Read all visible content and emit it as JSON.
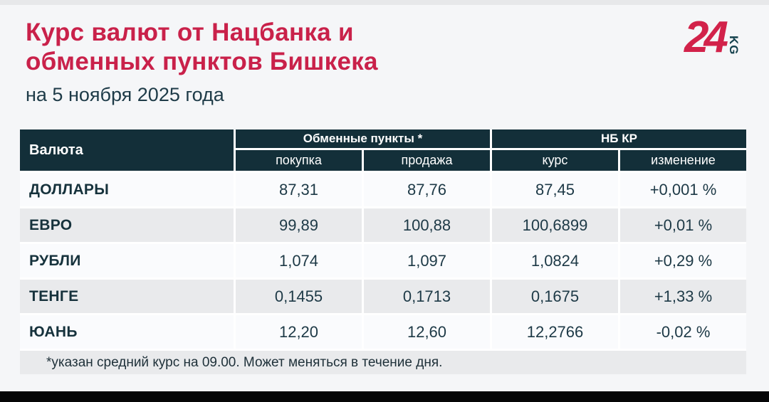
{
  "header": {
    "title_line1": "Курс валют от Нацбанка и",
    "title_line2": "обменных пунктов Бишкека",
    "date_subtitle": "на 5 ноября 2025 года",
    "logo_number": "24",
    "logo_suffix": "KG"
  },
  "colors": {
    "accent_red": "#c9214a",
    "header_teal": "#132f39",
    "row_even": "#e9eaec",
    "row_odd": "#fafbfd",
    "page_bg": "#f5f6f8"
  },
  "table": {
    "col_currency": "Валюта",
    "group_exchange": "Обменные пункты *",
    "group_nbkr": "НБ КР",
    "sub_buy": "покупка",
    "sub_sell": "продажа",
    "sub_rate": "курс",
    "sub_change": "изменение",
    "rows": [
      {
        "currency": "ДОЛЛАРЫ",
        "buy": "87,31",
        "sell": "87,76",
        "rate": "87,45",
        "change": "+0,001 %"
      },
      {
        "currency": "ЕВРО",
        "buy": "99,89",
        "sell": "100,88",
        "rate": "100,6899",
        "change": "+0,01 %"
      },
      {
        "currency": "РУБЛИ",
        "buy": "1,074",
        "sell": "1,097",
        "rate": "1,0824",
        "change": "+0,29 %"
      },
      {
        "currency": "ТЕНГЕ",
        "buy": "0,1455",
        "sell": "0,1713",
        "rate": "0,1675",
        "change": "+1,33 %"
      },
      {
        "currency": "ЮАНЬ",
        "buy": "12,20",
        "sell": "12,60",
        "rate": "12,2766",
        "change": "-0,02 %"
      }
    ],
    "footnote": "*указан средний курс на 09.00. Может меняться в течение дня."
  },
  "chart_data": {
    "type": "table",
    "title": "Курс валют от Нацбанка и обменных пунктов Бишкека",
    "subtitle": "на 5 ноября 2025 года",
    "columns": [
      "Валюта",
      "Обменные пункты * — покупка",
      "Обменные пункты * — продажа",
      "НБ КР — курс",
      "НБ КР — изменение"
    ],
    "rows": [
      [
        "ДОЛЛАРЫ",
        "87,31",
        "87,76",
        "87,45",
        "+0,001 %"
      ],
      [
        "ЕВРО",
        "99,89",
        "100,88",
        "100,6899",
        "+0,01 %"
      ],
      [
        "РУБЛИ",
        "1,074",
        "1,097",
        "1,0824",
        "+0,29 %"
      ],
      [
        "ТЕНГЕ",
        "0,1455",
        "0,1713",
        "0,1675",
        "+1,33 %"
      ],
      [
        "ЮАНЬ",
        "12,20",
        "12,60",
        "12,2766",
        "-0,02 %"
      ]
    ],
    "footnote": "*указан средний курс на 09.00. Может меняться в течение дня."
  }
}
